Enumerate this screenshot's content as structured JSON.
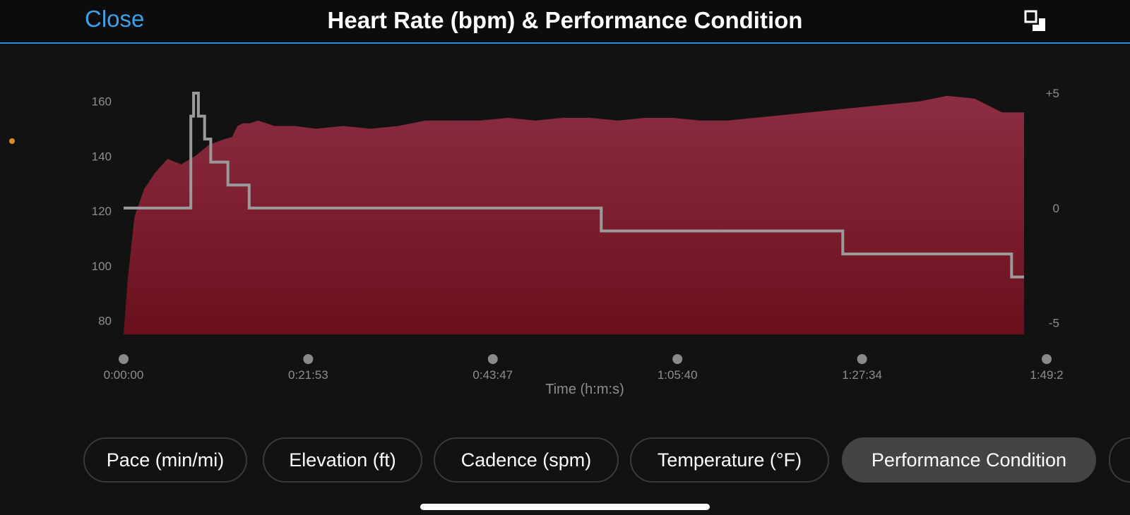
{
  "header": {
    "close_label": "Close",
    "title": "Heart Rate (bpm) & Performance Condition",
    "expand_icon": "expand-window-icon"
  },
  "tabs": [
    {
      "label": "Pace (min/mi)",
      "active": false
    },
    {
      "label": "Elevation (ft)",
      "active": false
    },
    {
      "label": "Cadence (spm)",
      "active": false
    },
    {
      "label": "Temperature (°F)",
      "active": false
    },
    {
      "label": "Performance Condition",
      "active": true
    },
    {
      "label": "",
      "active": false
    }
  ],
  "colors": {
    "accent": "#3aa0e8",
    "area_top": "#8c2d43",
    "area_bottom": "#6a101c",
    "step_line": "#9a9a9a",
    "axis_text": "#8e8e8e",
    "side_dot": "#e58a1c"
  },
  "chart_data": {
    "type": "area",
    "xlabel": "Time (h:m:s)",
    "x_tick_labels": [
      "0:00:00",
      "0:21:53",
      "0:43:47",
      "1:05:40",
      "1:27:34",
      "1:49:2"
    ],
    "xlim_seconds": [
      0,
      6561
    ],
    "y_left": {
      "label": "",
      "ticks": [
        160,
        140,
        120,
        100,
        80
      ],
      "lim": [
        75,
        163
      ]
    },
    "y_right": {
      "label": "",
      "ticks": [
        "+5",
        "0",
        "-5"
      ],
      "tick_values": [
        5,
        0,
        -5
      ],
      "lim": [
        -5.5,
        5
      ]
    },
    "grid": false,
    "legend": "none",
    "series": [
      {
        "name": "Heart Rate (bpm)",
        "axis": "left",
        "type": "area",
        "points": [
          [
            0,
            75
          ],
          [
            30,
            95
          ],
          [
            80,
            118
          ],
          [
            150,
            128
          ],
          [
            230,
            134
          ],
          [
            320,
            139
          ],
          [
            420,
            137
          ],
          [
            520,
            140
          ],
          [
            620,
            144
          ],
          [
            720,
            146
          ],
          [
            790,
            147
          ],
          [
            830,
            151
          ],
          [
            870,
            152
          ],
          [
            920,
            152
          ],
          [
            980,
            153
          ],
          [
            1100,
            151
          ],
          [
            1250,
            151
          ],
          [
            1400,
            150
          ],
          [
            1600,
            151
          ],
          [
            1800,
            150
          ],
          [
            2000,
            151
          ],
          [
            2200,
            153
          ],
          [
            2400,
            153
          ],
          [
            2600,
            153
          ],
          [
            2800,
            154
          ],
          [
            3000,
            153
          ],
          [
            3200,
            154
          ],
          [
            3400,
            154
          ],
          [
            3600,
            153
          ],
          [
            3800,
            154
          ],
          [
            4000,
            154
          ],
          [
            4200,
            153
          ],
          [
            4400,
            153
          ],
          [
            4600,
            154
          ],
          [
            4800,
            155
          ],
          [
            5000,
            156
          ],
          [
            5200,
            157
          ],
          [
            5400,
            158
          ],
          [
            5600,
            159
          ],
          [
            5800,
            160
          ],
          [
            6000,
            162
          ],
          [
            6200,
            161
          ],
          [
            6400,
            156
          ],
          [
            6561,
            156
          ]
        ]
      },
      {
        "name": "Performance Condition",
        "axis": "right",
        "type": "step",
        "points": [
          [
            0,
            0
          ],
          [
            490,
            0
          ],
          [
            490,
            4
          ],
          [
            510,
            4
          ],
          [
            510,
            5
          ],
          [
            545,
            5
          ],
          [
            545,
            4
          ],
          [
            590,
            4
          ],
          [
            590,
            3
          ],
          [
            635,
            3
          ],
          [
            635,
            2
          ],
          [
            760,
            2
          ],
          [
            760,
            1
          ],
          [
            915,
            1
          ],
          [
            915,
            0
          ],
          [
            3480,
            0
          ],
          [
            3480,
            -1
          ],
          [
            5240,
            -1
          ],
          [
            5240,
            -2
          ],
          [
            6470,
            -2
          ],
          [
            6470,
            -3
          ],
          [
            6561,
            -3
          ]
        ]
      }
    ]
  }
}
